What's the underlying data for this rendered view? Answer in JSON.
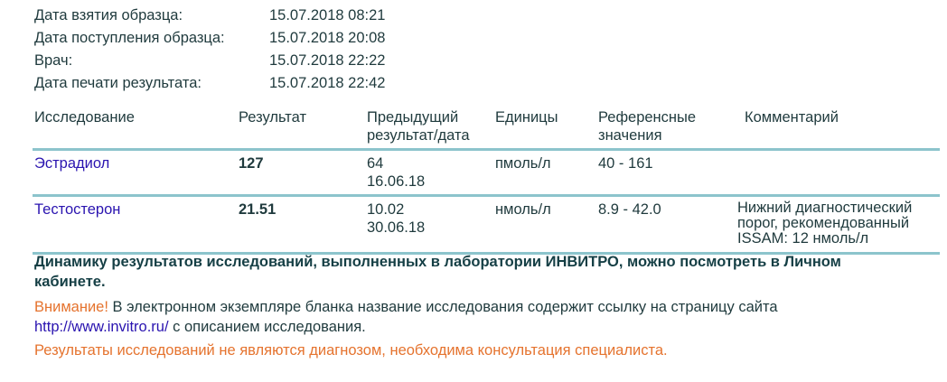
{
  "meta": [
    {
      "label": "Дата взятия образца:",
      "value": "15.07.2018 08:21"
    },
    {
      "label": "Дата поступления образца:",
      "value": "15.07.2018 20:08"
    },
    {
      "label": "Врач:",
      "value": "15.07.2018 22:22"
    },
    {
      "label": "Дата печати результата:",
      "value": "15.07.2018 22:42"
    }
  ],
  "table": {
    "headers": [
      "Исследование",
      "Результат",
      "Предыдущий результат/дата",
      "Единицы",
      "Референсные значения",
      "Комментарий"
    ],
    "rows": [
      {
        "test": "Эстрадиол",
        "result": "127",
        "prev_value": "64",
        "prev_date": "16.06.18",
        "units": "пмоль/л",
        "reference": "40 - 161",
        "comment": ""
      },
      {
        "test": "Тестостерон",
        "result": "21.51",
        "prev_value": "10.02",
        "prev_date": "30.06.18",
        "units": "нмоль/л",
        "reference": "8.9 - 42.0",
        "comment": "Нижний диагностический порог, рекомендованный ISSAM: 12 нмоль/л"
      }
    ]
  },
  "dynamics": "Динамику результатов исследований, выполненных в лаборатории ИНВИТРО, можно посмотреть в Личном кабинете.",
  "warning": {
    "prefix": "Внимание!",
    "text1": " В электронном экземпляре бланка название исследования содержит ссылку на страницу сайта",
    "link": "http://www.invitro.ru/",
    "text2": " с описанием исследования."
  },
  "disclaimer": "Результаты исследований не являются диагнозом, необходима консультация специалиста.",
  "colors": {
    "text": "#1f3a3d",
    "link": "#2a14b0",
    "accent": "#e5732e",
    "rule": "#8cc4cc"
  }
}
